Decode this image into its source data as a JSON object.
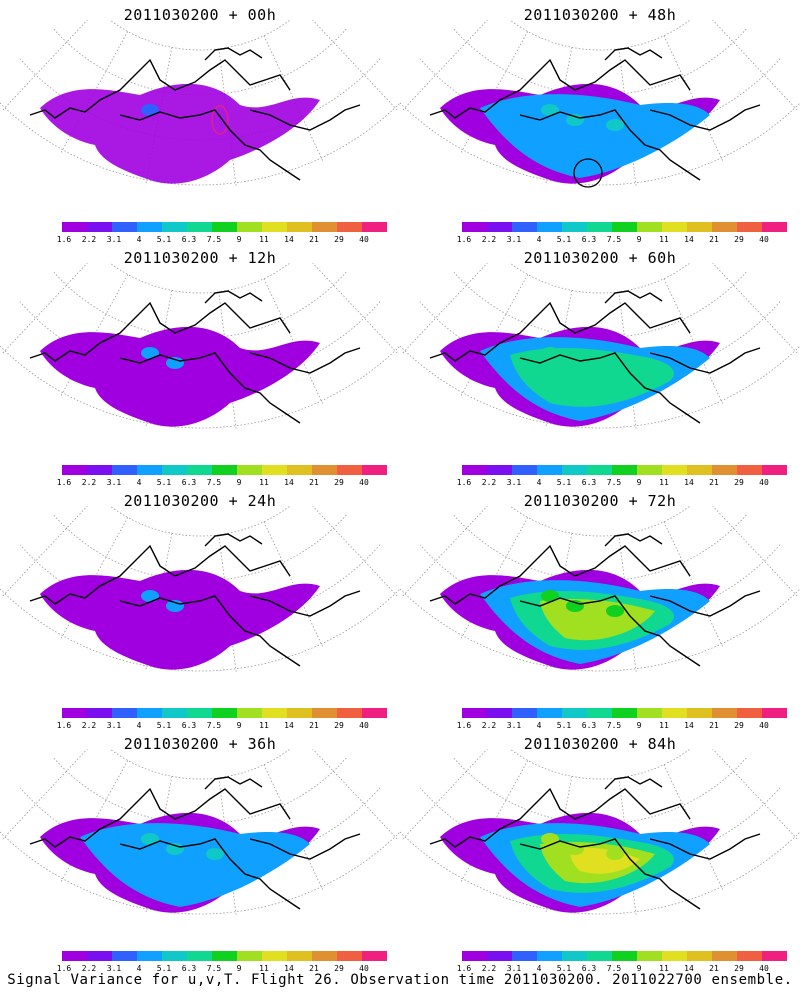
{
  "panels": [
    {
      "title": "2011030200 + 00h",
      "level": 0
    },
    {
      "title": "2011030200 + 48h",
      "level": 2
    },
    {
      "title": "2011030200 + 12h",
      "level": 1
    },
    {
      "title": "2011030200 + 60h",
      "level": 3
    },
    {
      "title": "2011030200 + 24h",
      "level": 1
    },
    {
      "title": "2011030200 + 72h",
      "level": 4
    },
    {
      "title": "2011030200 + 36h",
      "level": 2
    },
    {
      "title": "2011030200 + 84h",
      "level": 5
    }
  ],
  "colorbar": {
    "colors": [
      "#a000e0",
      "#7a10f0",
      "#3060ff",
      "#10a0ff",
      "#10c8c8",
      "#10d890",
      "#10d020",
      "#a0e020",
      "#e0e020",
      "#e0c020",
      "#e09030",
      "#f06040",
      "#f02080"
    ],
    "labels": [
      "1.6",
      "2.2",
      "3.1",
      "4",
      "5.1",
      "6.3",
      "7.5",
      "9",
      "11",
      "14",
      "21",
      "29",
      "40"
    ]
  },
  "caption": "Signal Variance for u,v,T. Flight 26. Observation time 2011030200. 2011022700 ensemble."
}
